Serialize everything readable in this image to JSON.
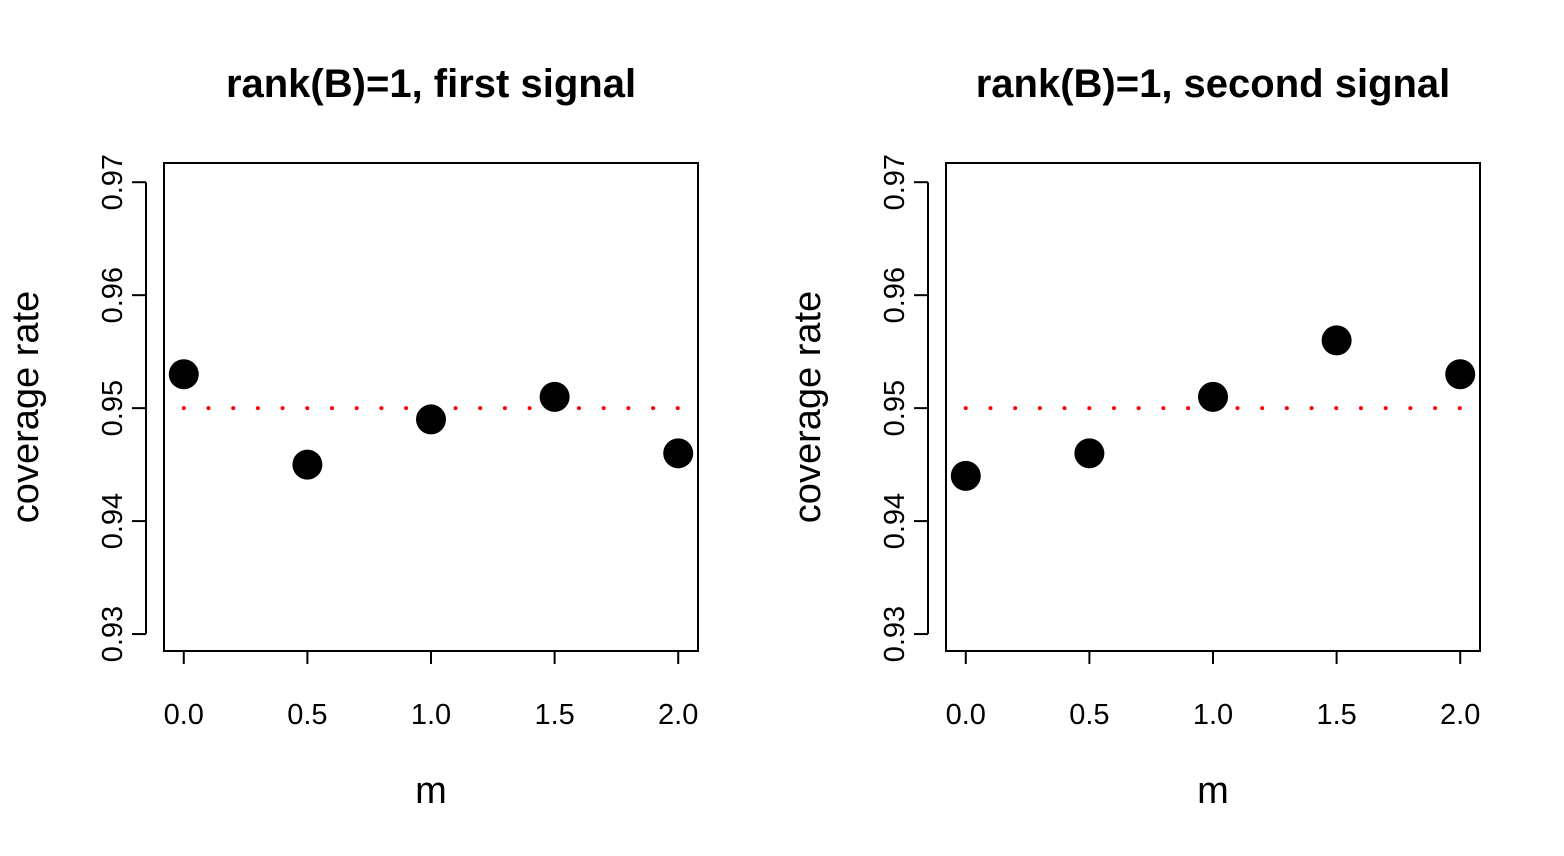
{
  "chart_data": [
    {
      "type": "scatter",
      "title": "rank(B)=1, first signal",
      "xlabel": "m",
      "ylabel": "coverage rate",
      "x": [
        0.0,
        0.5,
        1.0,
        1.5,
        2.0
      ],
      "y": [
        0.953,
        0.945,
        0.949,
        0.951,
        0.946
      ],
      "xticks": [
        "0.0",
        "0.5",
        "1.0",
        "1.5",
        "2.0"
      ],
      "yticks": [
        "0.93",
        "0.94",
        "0.95",
        "0.96",
        "0.97"
      ],
      "xlim": [
        -0.08,
        2.08
      ],
      "ylim": [
        0.9285,
        0.9717
      ],
      "reference_line": {
        "y": 0.95,
        "style": "dotted",
        "color": "#ff0000"
      },
      "point_color": "#000000",
      "grid": false
    },
    {
      "type": "scatter",
      "title": "rank(B)=1, second signal",
      "xlabel": "m",
      "ylabel": "coverage rate",
      "x": [
        0.0,
        0.5,
        1.0,
        1.5,
        2.0
      ],
      "y": [
        0.944,
        0.946,
        0.951,
        0.956,
        0.953
      ],
      "xticks": [
        "0.0",
        "0.5",
        "1.0",
        "1.5",
        "2.0"
      ],
      "yticks": [
        "0.93",
        "0.94",
        "0.95",
        "0.96",
        "0.97"
      ],
      "xlim": [
        -0.08,
        2.08
      ],
      "ylim": [
        0.9285,
        0.9717
      ],
      "reference_line": {
        "y": 0.95,
        "style": "dotted",
        "color": "#ff0000"
      },
      "point_color": "#000000",
      "grid": false
    }
  ]
}
